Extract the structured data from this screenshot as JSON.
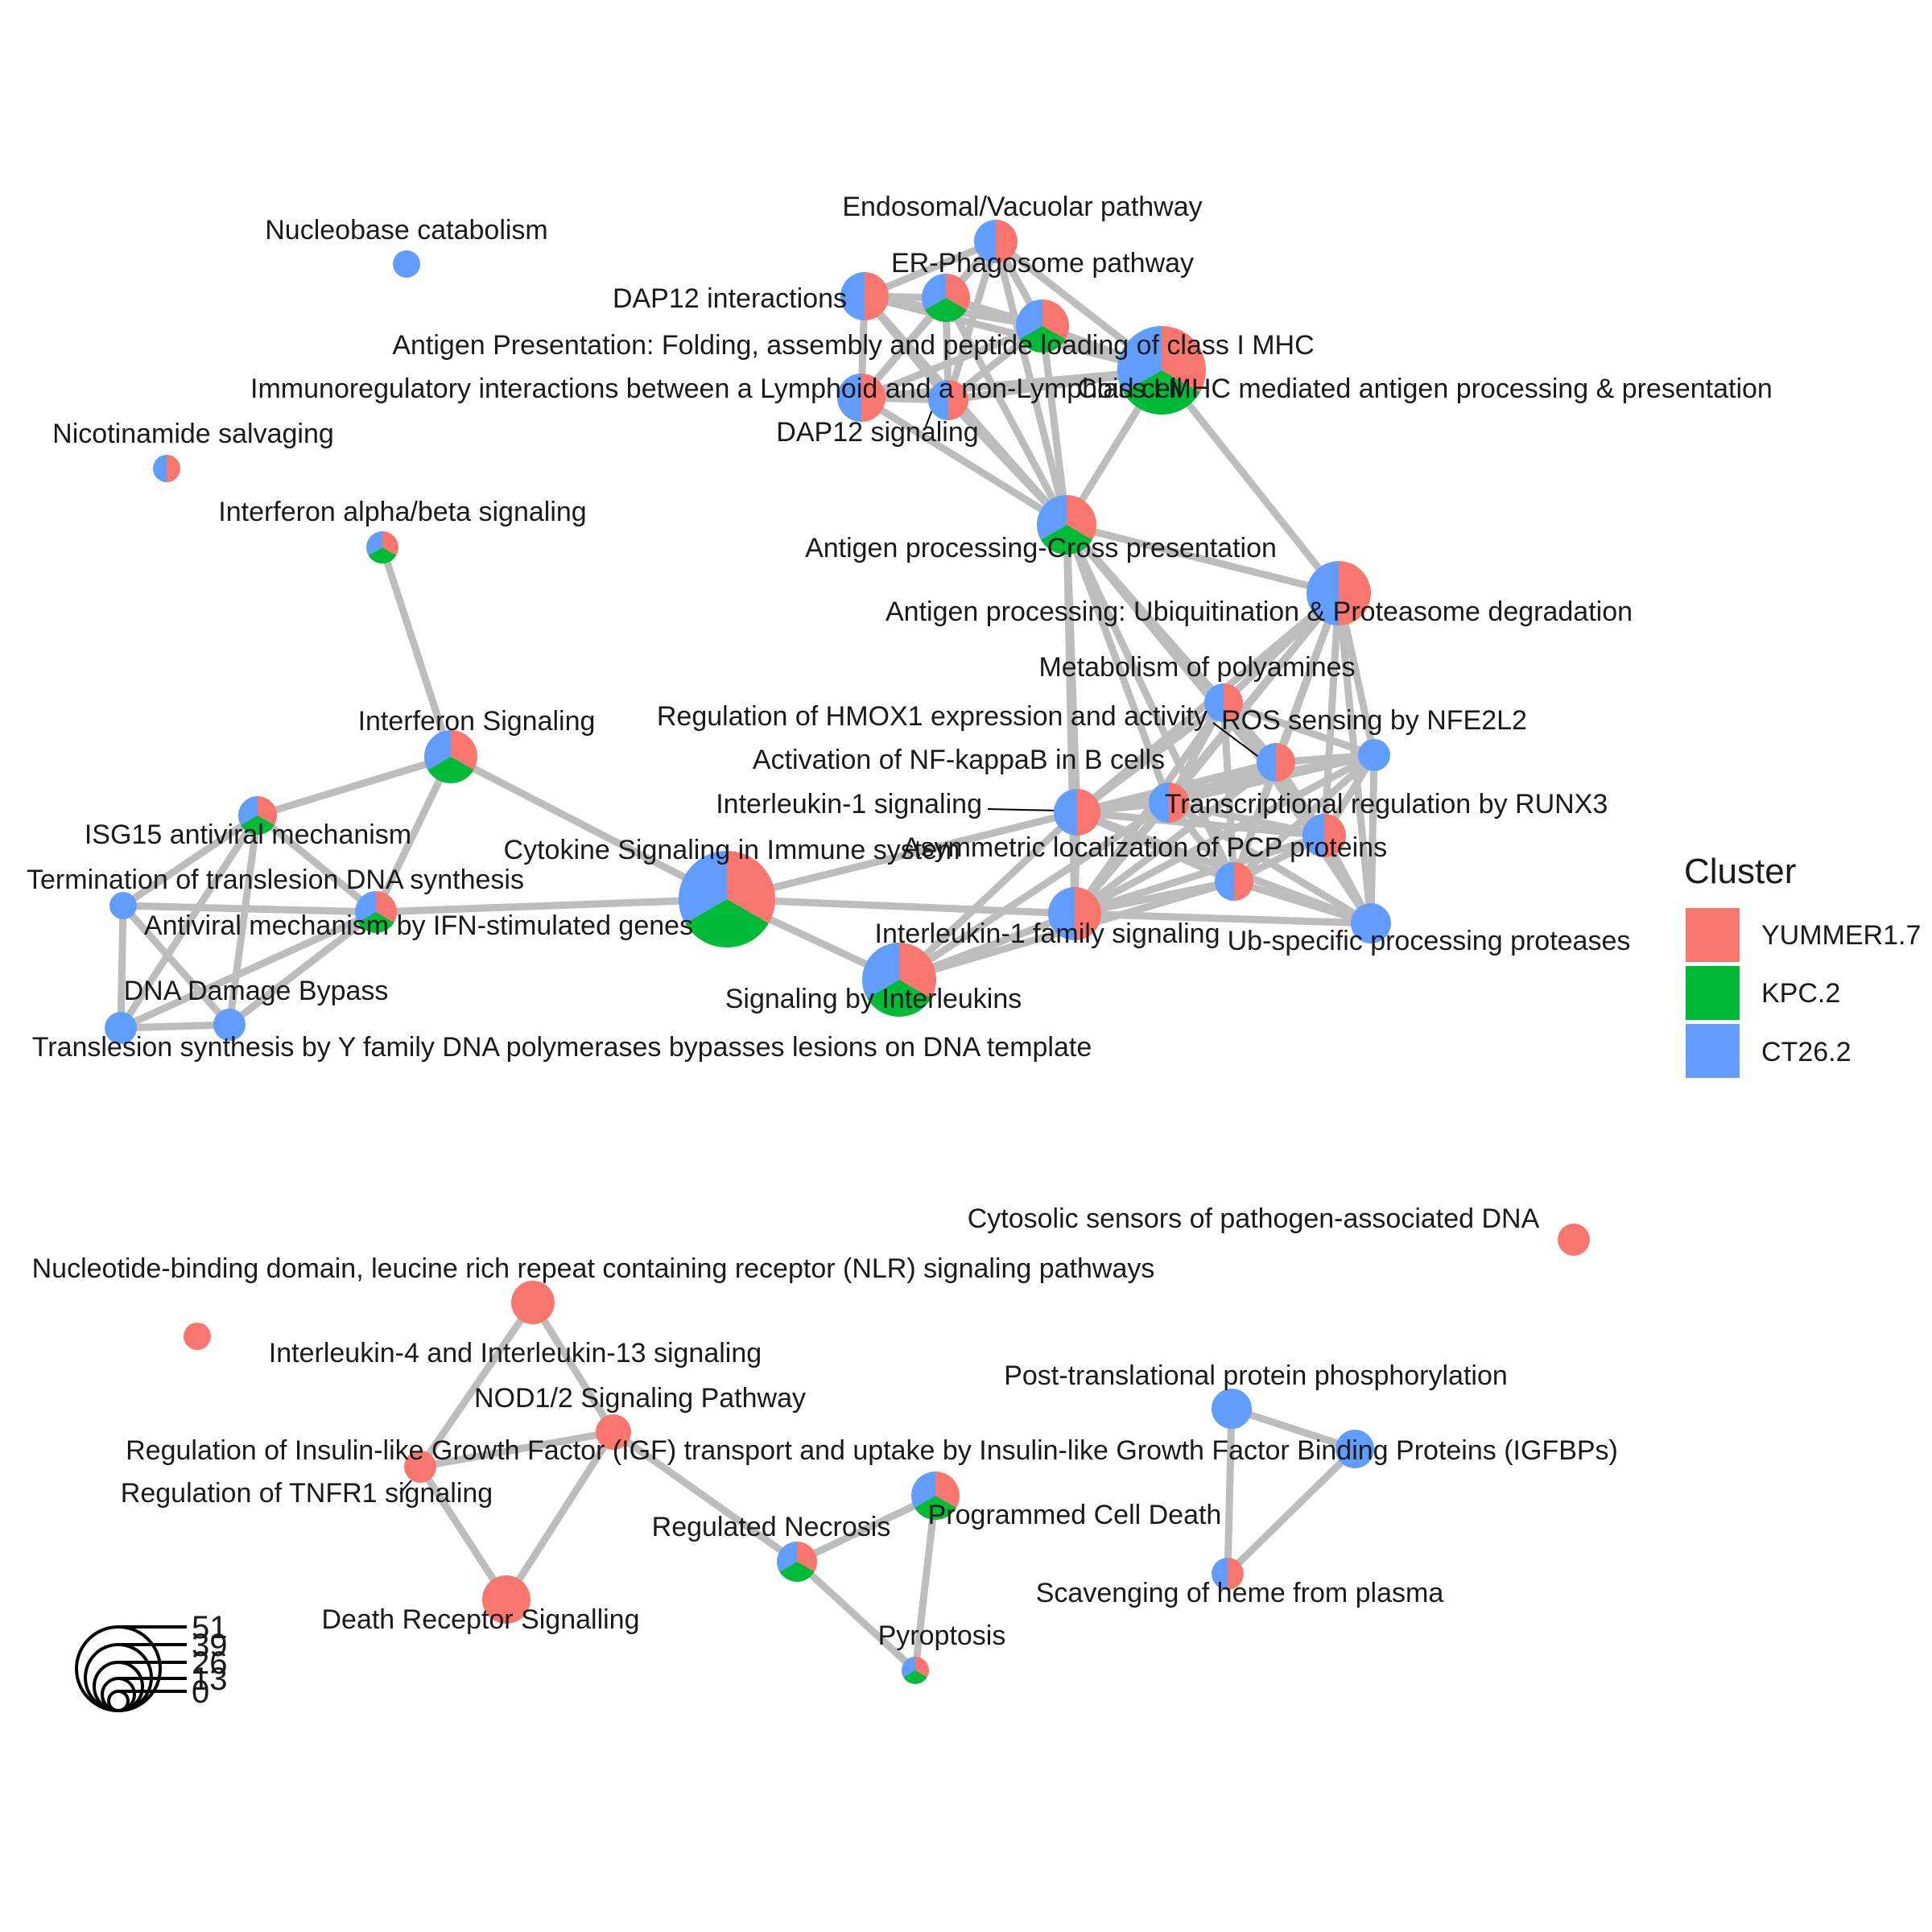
{
  "legend": {
    "title": "Cluster",
    "items": [
      {
        "label": "YUMMER1.7",
        "color": "#F8766D"
      },
      {
        "label": "KPC.2",
        "color": "#00BA38"
      },
      {
        "label": "CT26.2",
        "color": "#619CFF"
      }
    ]
  },
  "size_legend": {
    "labels": [
      "51",
      "39",
      "26",
      "13",
      "0"
    ]
  },
  "nodes": [
    {
      "id": "nucleobase",
      "label": "Nucleobase catabolism",
      "groups": {
        "CT26.2": 1
      }
    },
    {
      "id": "endosomal",
      "label": "Endosomal/Vacuolar pathway",
      "groups": {
        "YUMMER1.7": 1,
        "CT26.2": 1
      }
    },
    {
      "id": "er_phagosome",
      "label": "ER-Phagosome pathway",
      "groups": {
        "YUMMER1.7": 1,
        "KPC.2": 1,
        "CT26.2": 1
      }
    },
    {
      "id": "dap12_int",
      "label": "DAP12 interactions",
      "groups": {
        "YUMMER1.7": 1,
        "CT26.2": 1
      }
    },
    {
      "id": "ag_folding",
      "label": "Antigen Presentation: Folding, assembly and peptide loading of class I MHC",
      "groups": {
        "YUMMER1.7": 1,
        "KPC.2": 1,
        "CT26.2": 1
      }
    },
    {
      "id": "immunoreg",
      "label": "Immunoregulatory interactions between a Lymphoid and a non-Lymphoid cell",
      "groups": {
        "YUMMER1.7": 1,
        "CT26.2": 1
      }
    },
    {
      "id": "class_i_mhc",
      "label": "Class I MHC mediated antigen processing & presentation",
      "groups": {
        "YUMMER1.7": 1,
        "KPC.2": 1,
        "CT26.2": 1
      }
    },
    {
      "id": "dap12_sig",
      "label": "DAP12 signaling",
      "groups": {
        "YUMMER1.7": 1,
        "CT26.2": 1
      }
    },
    {
      "id": "nicotinamide",
      "label": "Nicotinamide salvaging",
      "groups": {
        "YUMMER1.7": 1,
        "CT26.2": 1
      }
    },
    {
      "id": "ifn_ab",
      "label": "Interferon alpha/beta signaling",
      "groups": {
        "YUMMER1.7": 1,
        "KPC.2": 1,
        "CT26.2": 1
      }
    },
    {
      "id": "cross_pres",
      "label": "Antigen processing-Cross presentation",
      "groups": {
        "YUMMER1.7": 1,
        "KPC.2": 1,
        "CT26.2": 1
      }
    },
    {
      "id": "ubiq",
      "label": "Antigen processing: Ubiquitination & Proteasome degradation",
      "groups": {
        "YUMMER1.7": 1,
        "CT26.2": 1
      }
    },
    {
      "id": "polyamines",
      "label": "Metabolism of polyamines",
      "groups": {
        "YUMMER1.7": 1,
        "CT26.2": 1
      }
    },
    {
      "id": "hmox1",
      "label": "Regulation of HMOX1 expression and activity",
      "groups": {
        "YUMMER1.7": 1,
        "CT26.2": 1
      }
    },
    {
      "id": "ros",
      "label": "ROS sensing by NFE2L2",
      "groups": {
        "CT26.2": 1
      }
    },
    {
      "id": "nfkb",
      "label": "Activation of NF-kappaB in B cells",
      "groups": {
        "YUMMER1.7": 1,
        "CT26.2": 1
      }
    },
    {
      "id": "il1",
      "label": "Interleukin-1 signaling",
      "groups": {
        "YUMMER1.7": 1,
        "CT26.2": 1
      }
    },
    {
      "id": "runx3",
      "label": "Transcriptional regulation by RUNX3",
      "groups": {
        "YUMMER1.7": 1,
        "CT26.2": 1
      }
    },
    {
      "id": "pcp",
      "label": "Asymmetric localization of PCP proteins",
      "groups": {
        "YUMMER1.7": 1,
        "CT26.2": 1
      }
    },
    {
      "id": "ifn_sig",
      "label": "Interferon Signaling",
      "groups": {
        "YUMMER1.7": 1,
        "KPC.2": 1,
        "CT26.2": 1
      }
    },
    {
      "id": "isg15",
      "label": "ISG15 antiviral mechanism",
      "groups": {
        "YUMMER1.7": 1,
        "KPC.2": 1,
        "CT26.2": 1
      }
    },
    {
      "id": "cytokine",
      "label": "Cytokine Signaling in Immune system",
      "groups": {
        "YUMMER1.7": 1,
        "KPC.2": 1,
        "CT26.2": 1
      }
    },
    {
      "id": "ub_proteases",
      "label": "Ub-specific processing proteases",
      "groups": {
        "CT26.2": 1
      }
    },
    {
      "id": "term_tls",
      "label": "Termination of translesion DNA synthesis",
      "groups": {
        "CT26.2": 1
      }
    },
    {
      "id": "antiviral",
      "label": "Antiviral mechanism by IFN-stimulated genes",
      "groups": {
        "YUMMER1.7": 1,
        "KPC.2": 1,
        "CT26.2": 1
      }
    },
    {
      "id": "il1_family",
      "label": "Interleukin-1 family signaling",
      "groups": {
        "YUMMER1.7": 1,
        "CT26.2": 1
      }
    },
    {
      "id": "sig_il",
      "label": "Signaling by Interleukins",
      "groups": {
        "YUMMER1.7": 1,
        "KPC.2": 1,
        "CT26.2": 1
      }
    },
    {
      "id": "dna_bypass",
      "label": "DNA Damage Bypass",
      "groups": {
        "CT26.2": 1
      }
    },
    {
      "id": "tls_y",
      "label": "Translesion synthesis by Y family DNA polymerases bypasses lesions on DNA template",
      "groups": {
        "CT26.2": 1
      }
    },
    {
      "id": "cytosolic",
      "label": "Cytosolic sensors of pathogen-associated DNA",
      "groups": {
        "YUMMER1.7": 1
      }
    },
    {
      "id": "nlr",
      "label": "Nucleotide-binding domain, leucine rich repeat containing receptor (NLR) signaling pathways",
      "groups": {
        "YUMMER1.7": 1
      }
    },
    {
      "id": "il4",
      "label": "Interleukin-4 and Interleukin-13 signaling",
      "groups": {
        "YUMMER1.7": 1
      }
    },
    {
      "id": "nod12",
      "label": "NOD1/2 Signaling Pathway",
      "groups": {
        "YUMMER1.7": 1
      }
    },
    {
      "id": "igf",
      "label": "Regulation of Insulin-like Growth Factor (IGF) transport and uptake by Insulin-like Growth Factor Binding Proteins (IGFBPs)",
      "groups": {
        "CT26.2": 1
      }
    },
    {
      "id": "tnfr1",
      "label": "Regulation of TNFR1 signaling",
      "groups": {
        "YUMMER1.7": 1
      }
    },
    {
      "id": "ptpp",
      "label": "Post-translational protein phosphorylation",
      "groups": {
        "CT26.2": 1
      }
    },
    {
      "id": "prog_death",
      "label": "Programmed Cell Death",
      "groups": {
        "YUMMER1.7": 1,
        "KPC.2": 1,
        "CT26.2": 1
      }
    },
    {
      "id": "reg_necrosis",
      "label": "Regulated Necrosis",
      "groups": {
        "YUMMER1.7": 1,
        "KPC.2": 1,
        "CT26.2": 1
      }
    },
    {
      "id": "death_receptor",
      "label": "Death Receptor Signalling",
      "groups": {
        "YUMMER1.7": 1
      }
    },
    {
      "id": "pyroptosis",
      "label": "Pyroptosis",
      "groups": {
        "YUMMER1.7": 1,
        "KPC.2": 1,
        "CT26.2": 1
      }
    },
    {
      "id": "heme",
      "label": "Scavenging of heme from plasma",
      "groups": {
        "YUMMER1.7": 1,
        "CT26.2": 1
      }
    }
  ],
  "edges": [
    [
      "ifn_ab",
      "ifn_sig"
    ],
    [
      "ifn_sig",
      "isg15"
    ],
    [
      "ifn_sig",
      "antiviral"
    ],
    [
      "ifn_sig",
      "cytokine"
    ],
    [
      "isg15",
      "antiviral"
    ],
    [
      "isg15",
      "term_tls"
    ],
    [
      "isg15",
      "tls_y"
    ],
    [
      "isg15",
      "dna_bypass"
    ],
    [
      "antiviral",
      "term_tls"
    ],
    [
      "antiviral",
      "tls_y"
    ],
    [
      "antiviral",
      "dna_bypass"
    ],
    [
      "antiviral",
      "cytokine"
    ],
    [
      "term_tls",
      "tls_y"
    ],
    [
      "term_tls",
      "dna_bypass"
    ],
    [
      "tls_y",
      "dna_bypass"
    ],
    [
      "cytokine",
      "sig_il"
    ],
    [
      "cytokine",
      "il1"
    ],
    [
      "cytokine",
      "il1_family"
    ],
    [
      "sig_il",
      "il1"
    ],
    [
      "sig_il",
      "il1_family"
    ],
    [
      "sig_il",
      "nfkb"
    ],
    [
      "sig_il",
      "pcp"
    ],
    [
      "il1",
      "il1_family"
    ],
    [
      "il1",
      "cross_pres"
    ],
    [
      "il1",
      "ubiq"
    ],
    [
      "il1",
      "nfkb"
    ],
    [
      "il1",
      "hmox1"
    ],
    [
      "il1",
      "ros"
    ],
    [
      "il1",
      "polyamines"
    ],
    [
      "il1",
      "runx3"
    ],
    [
      "il1",
      "pcp"
    ],
    [
      "il1",
      "ub_proteases"
    ],
    [
      "il1_family",
      "nfkb"
    ],
    [
      "il1_family",
      "ub_proteases"
    ],
    [
      "il1_family",
      "pcp"
    ],
    [
      "il1_family",
      "runx3"
    ],
    [
      "il1_family",
      "hmox1"
    ],
    [
      "il1_family",
      "ros"
    ],
    [
      "il1_family",
      "polyamines"
    ],
    [
      "il1_family",
      "ubiq"
    ],
    [
      "il1_family",
      "cross_pres"
    ],
    [
      "nfkb",
      "ubiq"
    ],
    [
      "nfkb",
      "ros"
    ],
    [
      "nfkb",
      "hmox1"
    ],
    [
      "nfkb",
      "polyamines"
    ],
    [
      "nfkb",
      "runx3"
    ],
    [
      "nfkb",
      "pcp"
    ],
    [
      "nfkb",
      "ub_proteases"
    ],
    [
      "nfkb",
      "cross_pres"
    ],
    [
      "hmox1",
      "ros"
    ],
    [
      "hmox1",
      "ubiq"
    ],
    [
      "hmox1",
      "polyamines"
    ],
    [
      "hmox1",
      "runx3"
    ],
    [
      "hmox1",
      "pcp"
    ],
    [
      "hmox1",
      "ub_proteases"
    ],
    [
      "hmox1",
      "cross_pres"
    ],
    [
      "ros",
      "ubiq"
    ],
    [
      "ros",
      "polyamines"
    ],
    [
      "ros",
      "runx3"
    ],
    [
      "ros",
      "pcp"
    ],
    [
      "ros",
      "ub_proteases"
    ],
    [
      "polyamines",
      "ubiq"
    ],
    [
      "polyamines",
      "runx3"
    ],
    [
      "polyamines",
      "pcp"
    ],
    [
      "polyamines",
      "ub_proteases"
    ],
    [
      "polyamines",
      "cross_pres"
    ],
    [
      "runx3",
      "ubiq"
    ],
    [
      "runx3",
      "pcp"
    ],
    [
      "runx3",
      "ub_proteases"
    ],
    [
      "pcp",
      "ubiq"
    ],
    [
      "pcp",
      "ub_proteases"
    ],
    [
      "ub_proteases",
      "ubiq"
    ],
    [
      "ubiq",
      "cross_pres"
    ],
    [
      "ubiq",
      "class_i_mhc"
    ],
    [
      "cross_pres",
      "class_i_mhc"
    ],
    [
      "cross_pres",
      "ag_folding"
    ],
    [
      "cross_pres",
      "er_phagosome"
    ],
    [
      "cross_pres",
      "endosomal"
    ],
    [
      "cross_pres",
      "dap12_int"
    ],
    [
      "cross_pres",
      "dap12_sig"
    ],
    [
      "cross_pres",
      "immunoreg"
    ],
    [
      "cross_pres",
      "pcp"
    ],
    [
      "cross_pres",
      "runx3"
    ],
    [
      "endosomal",
      "er_phagosome"
    ],
    [
      "endosomal",
      "dap12_int"
    ],
    [
      "endosomal",
      "ag_folding"
    ],
    [
      "endosomal",
      "class_i_mhc"
    ],
    [
      "endosomal",
      "immunoreg"
    ],
    [
      "endosomal",
      "dap12_sig"
    ],
    [
      "er_phagosome",
      "dap12_int"
    ],
    [
      "er_phagosome",
      "ag_folding"
    ],
    [
      "er_phagosome",
      "class_i_mhc"
    ],
    [
      "er_phagosome",
      "immunoreg"
    ],
    [
      "er_phagosome",
      "dap12_sig"
    ],
    [
      "dap12_int",
      "ag_folding"
    ],
    [
      "dap12_int",
      "immunoreg"
    ],
    [
      "dap12_int",
      "dap12_sig"
    ],
    [
      "dap12_int",
      "class_i_mhc"
    ],
    [
      "ag_folding",
      "class_i_mhc"
    ],
    [
      "ag_folding",
      "immunoreg"
    ],
    [
      "ag_folding",
      "dap12_sig"
    ],
    [
      "immunoreg",
      "dap12_sig"
    ],
    [
      "immunoreg",
      "class_i_mhc"
    ],
    [
      "dap12_sig",
      "class_i_mhc"
    ],
    [
      "nlr",
      "nod12"
    ],
    [
      "nlr",
      "tnfr1"
    ],
    [
      "nod12",
      "tnfr1"
    ],
    [
      "nod12",
      "death_receptor"
    ],
    [
      "nod12",
      "reg_necrosis"
    ],
    [
      "tnfr1",
      "death_receptor"
    ],
    [
      "reg_necrosis",
      "prog_death"
    ],
    [
      "reg_necrosis",
      "pyroptosis"
    ],
    [
      "prog_death",
      "pyroptosis"
    ],
    [
      "ptpp",
      "igf"
    ],
    [
      "ptpp",
      "heme"
    ],
    [
      "igf",
      "heme"
    ]
  ]
}
